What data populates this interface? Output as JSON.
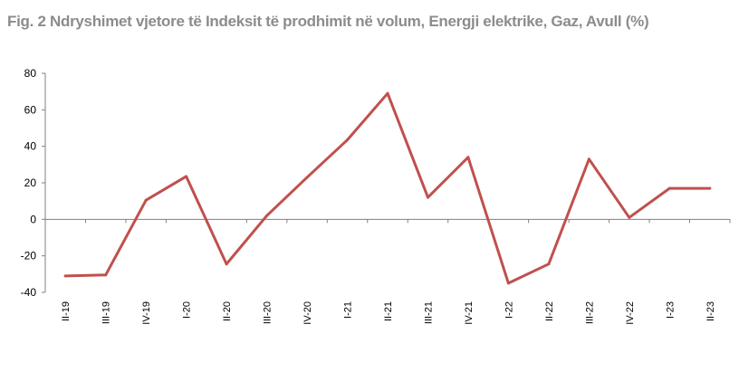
{
  "title": "Fig. 2 Ndryshimet vjetore të Indeksit të prodhimit në volum, Energji elektrike, Gaz, Avull (%)",
  "chart_data": {
    "type": "line",
    "title": "Fig. 2 Ndryshimet vjetore të Indeksit të prodhimit në volum, Energji elektrike, Gaz, Avull (%)",
    "xlabel": "",
    "ylabel": "",
    "categories": [
      "II-19",
      "III-19",
      "IV-19",
      "I-20",
      "II-20",
      "III-20",
      "IV-20",
      "I-21",
      "II-21",
      "III-21",
      "IV-21",
      "I-22",
      "II-22",
      "III-22",
      "IV-22",
      "I-23",
      "II-23"
    ],
    "series": [
      {
        "values": [
          -31,
          -30.5,
          10.5,
          23.5,
          -24.5,
          2,
          23,
          43.5,
          69,
          12,
          34,
          -35,
          -24.5,
          33,
          1,
          17,
          17
        ]
      }
    ],
    "ylim": [
      -40,
      80
    ],
    "yticks": [
      "80",
      "60",
      "40",
      "20",
      "0",
      "-20",
      "-40"
    ],
    "line_color": "#c0504d",
    "grid": false,
    "legend": "none"
  }
}
